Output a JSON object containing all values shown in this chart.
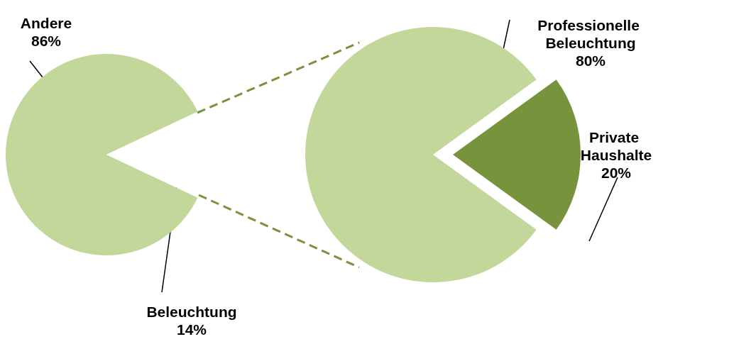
{
  "chart_data": [
    {
      "type": "pie",
      "categories": [
        "Andere",
        "Beleuchtung"
      ],
      "values": [
        86,
        14
      ],
      "colors": [
        "#c4d79b",
        "#ffffff"
      ],
      "value_labels": [
        "86%",
        "14%"
      ]
    },
    {
      "type": "pie",
      "categories": [
        "Professionelle Beleuchtung",
        "Private Haushalte"
      ],
      "values": [
        80,
        20
      ],
      "colors": [
        "#c4d79b",
        "#77933c"
      ],
      "value_labels": [
        "80%",
        "20%"
      ]
    }
  ]
}
